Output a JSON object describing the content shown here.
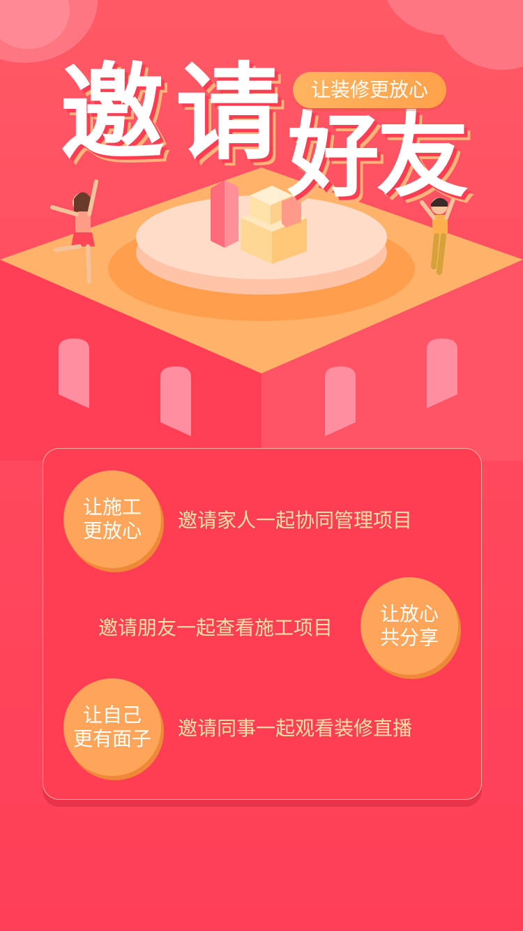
{
  "title": {
    "char1": "邀",
    "char2": "请",
    "char3": "好",
    "char4": "友"
  },
  "slogan": "让装修更放心",
  "rows": [
    {
      "badge_line1": "让施工",
      "badge_line2": "更放心",
      "text": "邀请家人一起协同管理项目"
    },
    {
      "badge_line1": "让放心",
      "badge_line2": "共分享",
      "text": "邀请朋友一起查看施工项目"
    },
    {
      "badge_line1": "让自己",
      "badge_line2": "更有面子",
      "text": "邀请同事一起观看装修直播"
    }
  ],
  "colors": {
    "background": "#ff4a5e",
    "badge": "#ffa55a",
    "row_text": "#ffe1a8",
    "platform": "#ffb36a"
  }
}
